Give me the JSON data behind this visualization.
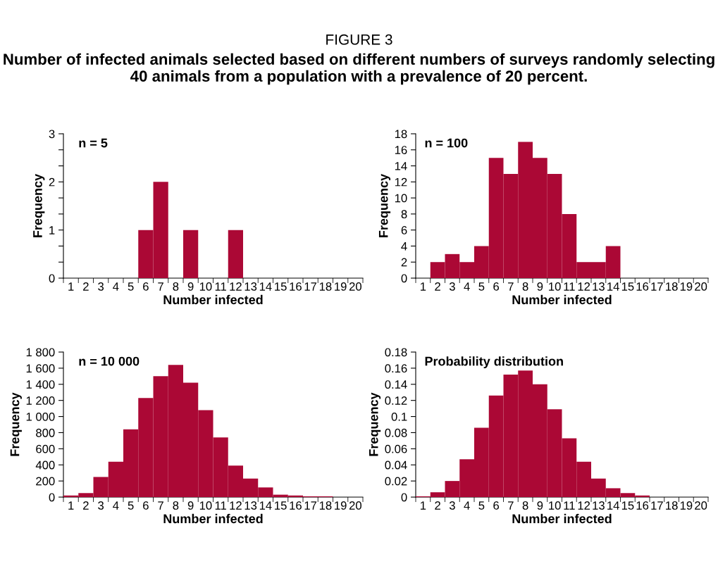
{
  "chart_data": [
    {
      "type": "bar",
      "title": "FIGURE 3",
      "subtitle": "Number of infected animals selected based on different numbers of surveys randomly selecting 40 animals from a population with a prevalence of 20 percent.",
      "xlabel": "Number infected",
      "ylabel": "Frequency",
      "annotations": [
        "n = 5"
      ],
      "categories": [
        "1",
        "2",
        "3",
        "4",
        "5",
        "6",
        "7",
        "8",
        "9",
        "10",
        "11",
        "12",
        "13",
        "14",
        "15",
        "16",
        "17",
        "18",
        "19",
        "20"
      ],
      "values": [
        0,
        0,
        0,
        0,
        0,
        1,
        2,
        0,
        1,
        0,
        0,
        1,
        0,
        0,
        0,
        0,
        0,
        0,
        0,
        0
      ],
      "color": "#ab0835",
      "ylim": [
        0,
        3
      ],
      "yticks": [
        0,
        {
          "value": 0.333,
          "label": null
        },
        {
          "value": 0.667,
          "label": null
        },
        1,
        {
          "value": 1.333,
          "label": null
        },
        {
          "value": 1.667,
          "label": null
        },
        2,
        {
          "value": 2.333,
          "label": null
        },
        {
          "value": 2.667,
          "label": null
        },
        3
      ],
      "grid": false
    },
    {
      "type": "bar",
      "xlabel": "Number infected",
      "ylabel": "Frequency",
      "annotations": [
        "n = 100"
      ],
      "categories": [
        "1",
        "2",
        "3",
        "4",
        "5",
        "6",
        "7",
        "8",
        "9",
        "10",
        "11",
        "12",
        "13",
        "14",
        "15",
        "16",
        "17",
        "18",
        "19",
        "20"
      ],
      "values": [
        0,
        2,
        3,
        2,
        4,
        15,
        13,
        17,
        15,
        13,
        8,
        2,
        2,
        4,
        0,
        0,
        0,
        0,
        0,
        0
      ],
      "color": "#ab0835",
      "ylim": [
        0,
        18
      ],
      "yticks": [
        0,
        2,
        4,
        6,
        8,
        10,
        12,
        14,
        16,
        18
      ],
      "grid": false
    },
    {
      "type": "bar",
      "xlabel": "Number infected",
      "ylabel": "Frequency",
      "annotations": [
        "n = 10 000"
      ],
      "categories": [
        "1",
        "2",
        "3",
        "4",
        "5",
        "6",
        "7",
        "8",
        "9",
        "10",
        "11",
        "12",
        "13",
        "14",
        "15",
        "16",
        "17",
        "18",
        "19",
        "20"
      ],
      "values": [
        20,
        50,
        250,
        440,
        840,
        1230,
        1500,
        1640,
        1420,
        1080,
        740,
        390,
        230,
        120,
        30,
        20,
        10,
        10,
        0,
        0
      ],
      "color": "#ab0835",
      "ylim": [
        0,
        1800
      ],
      "yticks": [
        0,
        200,
        400,
        600,
        800,
        {
          "value": 1000,
          "label": "1 000"
        },
        {
          "value": 1200,
          "label": "1 200"
        },
        {
          "value": 1400,
          "label": "1 400"
        },
        {
          "value": 1600,
          "label": "1 600"
        },
        {
          "value": 1800,
          "label": "1 800"
        }
      ],
      "grid": false
    },
    {
      "type": "bar",
      "xlabel": "Number infected",
      "ylabel": "Frequency",
      "annotations": [
        "Probability distribution"
      ],
      "categories": [
        "1",
        "2",
        "3",
        "4",
        "5",
        "6",
        "7",
        "8",
        "9",
        "10",
        "11",
        "12",
        "13",
        "14",
        "15",
        "16",
        "17",
        "18",
        "19",
        "20"
      ],
      "values": [
        0.001,
        0.006,
        0.02,
        0.047,
        0.086,
        0.126,
        0.152,
        0.157,
        0.14,
        0.109,
        0.073,
        0.044,
        0.023,
        0.011,
        0.005,
        0.002,
        0,
        0,
        0,
        0
      ],
      "color": "#ab0835",
      "ylim": [
        0,
        0.18
      ],
      "yticks": [
        0,
        0.02,
        0.04,
        0.06,
        0.08,
        0.1,
        0.12,
        0.14,
        0.16,
        0.18
      ],
      "grid": false
    }
  ]
}
